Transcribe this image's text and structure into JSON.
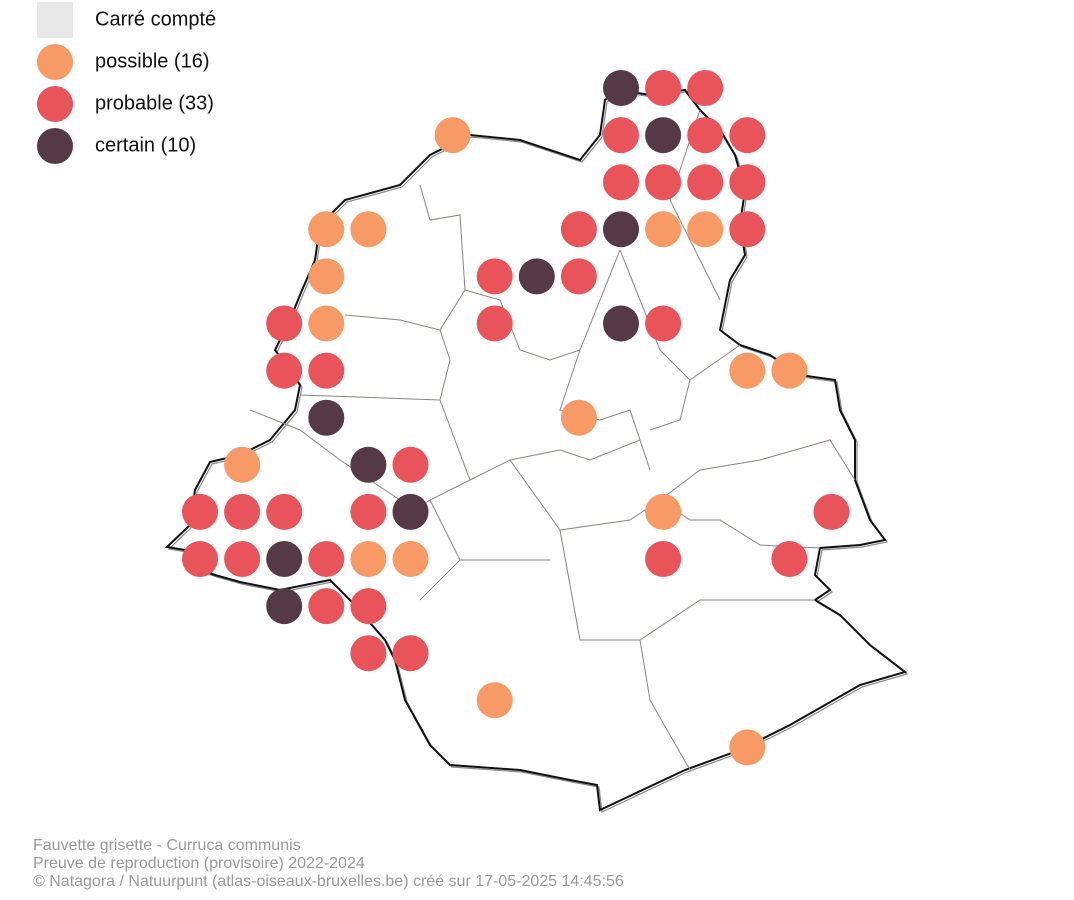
{
  "legend": {
    "items": [
      {
        "label": "Carré compté",
        "color": "#e8e8e8"
      },
      {
        "label": "possible (16)",
        "color": "#f79a65",
        "cells": [
          [
            6,
            1
          ],
          [
            3,
            3
          ],
          [
            4,
            3
          ],
          [
            11,
            3
          ],
          [
            12,
            3
          ],
          [
            3,
            4
          ],
          [
            3,
            5
          ],
          [
            13,
            6
          ],
          [
            14,
            6
          ],
          [
            9,
            7
          ],
          [
            1,
            8
          ],
          [
            11,
            9
          ],
          [
            4,
            10
          ],
          [
            5,
            10
          ],
          [
            7,
            13
          ],
          [
            13,
            14
          ]
        ]
      },
      {
        "label": "probable (33)",
        "color": "#e8545a",
        "cells": [
          [
            11,
            0
          ],
          [
            12,
            0
          ],
          [
            10,
            1
          ],
          [
            12,
            1
          ],
          [
            13,
            1
          ],
          [
            10,
            2
          ],
          [
            11,
            2
          ],
          [
            12,
            2
          ],
          [
            13,
            2
          ],
          [
            9,
            3
          ],
          [
            13,
            3
          ],
          [
            7,
            4
          ],
          [
            9,
            4
          ],
          [
            2,
            5
          ],
          [
            7,
            5
          ],
          [
            11,
            5
          ],
          [
            2,
            6
          ],
          [
            3,
            6
          ],
          [
            5,
            8
          ],
          [
            0,
            9
          ],
          [
            1,
            9
          ],
          [
            2,
            9
          ],
          [
            4,
            9
          ],
          [
            15,
            9
          ],
          [
            0,
            10
          ],
          [
            1,
            10
          ],
          [
            3,
            10
          ],
          [
            11,
            10
          ],
          [
            14,
            10
          ],
          [
            3,
            11
          ],
          [
            4,
            11
          ],
          [
            4,
            12
          ],
          [
            5,
            12
          ]
        ]
      },
      {
        "label": "certain (10)",
        "color": "#553a45",
        "cells": [
          [
            10,
            0
          ],
          [
            11,
            1
          ],
          [
            10,
            3
          ],
          [
            8,
            4
          ],
          [
            10,
            5
          ],
          [
            3,
            7
          ],
          [
            4,
            8
          ],
          [
            5,
            9
          ],
          [
            2,
            10
          ],
          [
            2,
            11
          ]
        ]
      }
    ]
  },
  "footer": {
    "lines": [
      "Fauvette grisette - Curruca communis",
      "Preuve de reproduction (provisoire) 2022-2024",
      "© Natagora / Natuurpunt (atlas-oiseaux-bruxelles.be) créé sur 17-05-2025 14:45:56"
    ]
  }
}
